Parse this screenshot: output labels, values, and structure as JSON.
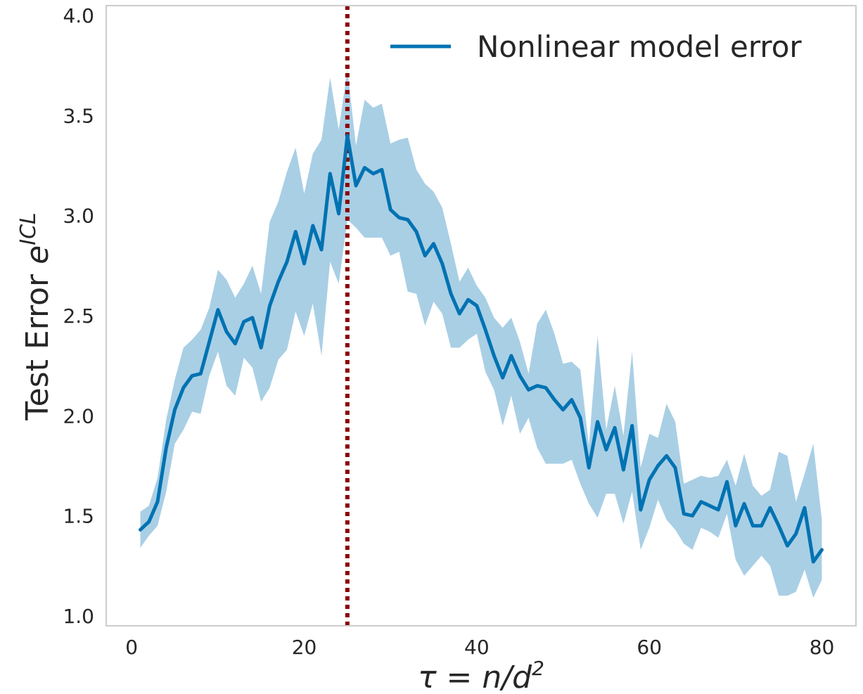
{
  "chart_data": {
    "type": "line",
    "title": "",
    "xlabel": "τ = n/d²",
    "ylabel": "Test Error e^ICL",
    "xlim": [
      -2.95,
      83.95
    ],
    "ylim": [
      0.95,
      4.05
    ],
    "xticks": [
      0,
      20,
      40,
      60,
      80
    ],
    "yticks": [
      1.0,
      1.5,
      2.0,
      2.5,
      3.0,
      3.5,
      4.0
    ],
    "xtick_labels": [
      "0",
      "20",
      "40",
      "60",
      "80"
    ],
    "ytick_labels": [
      "1.0",
      "1.5",
      "2.0",
      "2.5",
      "3.0",
      "3.5",
      "4.0"
    ],
    "grid": false,
    "legend_position": "top-right",
    "vline": {
      "x": 25,
      "color": "#8B0000",
      "style": "dotted"
    },
    "colors": {
      "line": "#0072B2",
      "band": "#a9cfe5",
      "axes": "#cccccc"
    },
    "series": [
      {
        "name": "Nonlinear model error",
        "x": [
          1,
          2,
          3,
          4,
          5,
          6,
          7,
          8,
          9,
          10,
          11,
          12,
          13,
          14,
          15,
          16,
          17,
          18,
          19,
          20,
          21,
          22,
          23,
          24,
          25,
          26,
          27,
          28,
          29,
          30,
          31,
          32,
          33,
          34,
          35,
          36,
          37,
          38,
          39,
          40,
          41,
          42,
          43,
          44,
          45,
          46,
          47,
          48,
          49,
          50,
          51,
          52,
          53,
          54,
          55,
          56,
          57,
          58,
          59,
          60,
          61,
          62,
          63,
          64,
          65,
          66,
          67,
          68,
          69,
          70,
          71,
          72,
          73,
          74,
          75,
          76,
          77,
          78,
          79,
          80
        ],
        "y": [
          1.43,
          1.47,
          1.57,
          1.84,
          2.03,
          2.14,
          2.2,
          2.21,
          2.37,
          2.53,
          2.42,
          2.36,
          2.47,
          2.49,
          2.34,
          2.55,
          2.67,
          2.77,
          2.92,
          2.76,
          2.95,
          2.83,
          3.21,
          3.01,
          3.4,
          3.15,
          3.24,
          3.21,
          3.23,
          3.03,
          2.99,
          2.98,
          2.92,
          2.8,
          2.86,
          2.76,
          2.61,
          2.51,
          2.58,
          2.55,
          2.43,
          2.3,
          2.19,
          2.3,
          2.2,
          2.13,
          2.15,
          2.14,
          2.08,
          2.03,
          2.08,
          1.99,
          1.74,
          1.97,
          1.83,
          1.94,
          1.73,
          1.95,
          1.53,
          1.68,
          1.75,
          1.8,
          1.74,
          1.51,
          1.5,
          1.57,
          1.55,
          1.53,
          1.67,
          1.45,
          1.56,
          1.45,
          1.45,
          1.54,
          1.45,
          1.35,
          1.41,
          1.54,
          1.27,
          1.33
        ],
        "lower": [
          1.34,
          1.4,
          1.45,
          1.62,
          1.86,
          1.93,
          2.02,
          2.01,
          2.2,
          2.32,
          2.15,
          2.1,
          2.29,
          2.24,
          2.07,
          2.14,
          2.28,
          2.33,
          2.52,
          2.4,
          2.56,
          2.3,
          2.77,
          2.66,
          2.98,
          2.94,
          2.89,
          2.89,
          2.89,
          2.8,
          2.82,
          2.62,
          2.61,
          2.45,
          2.57,
          2.51,
          2.34,
          2.34,
          2.38,
          2.41,
          2.22,
          2.13,
          1.95,
          2.1,
          1.91,
          1.99,
          1.84,
          1.76,
          1.76,
          1.76,
          1.78,
          1.66,
          1.56,
          1.49,
          1.61,
          1.61,
          1.46,
          1.62,
          1.33,
          1.44,
          1.58,
          1.48,
          1.43,
          1.36,
          1.33,
          1.44,
          1.42,
          1.39,
          1.51,
          1.28,
          1.2,
          1.25,
          1.3,
          1.25,
          1.1,
          1.1,
          1.12,
          1.23,
          1.09,
          1.18
        ],
        "upper": [
          1.52,
          1.55,
          1.69,
          1.98,
          2.18,
          2.34,
          2.38,
          2.43,
          2.54,
          2.73,
          2.68,
          2.59,
          2.66,
          2.75,
          2.61,
          2.97,
          3.07,
          3.22,
          3.34,
          3.11,
          3.31,
          3.38,
          3.69,
          3.43,
          3.73,
          3.35,
          3.58,
          3.54,
          3.56,
          3.36,
          3.38,
          3.39,
          3.23,
          3.16,
          3.12,
          3.04,
          2.86,
          2.67,
          2.74,
          2.65,
          2.59,
          2.49,
          2.44,
          2.49,
          2.37,
          2.21,
          2.46,
          2.53,
          2.41,
          2.26,
          2.27,
          2.23,
          1.85,
          2.4,
          1.93,
          2.15,
          1.9,
          2.32,
          1.74,
          1.91,
          1.89,
          2.06,
          1.97,
          1.66,
          1.68,
          1.7,
          1.69,
          1.7,
          1.78,
          1.65,
          1.81,
          1.65,
          1.6,
          1.63,
          1.82,
          1.8,
          1.57,
          1.71,
          1.86,
          1.48
        ]
      }
    ]
  }
}
